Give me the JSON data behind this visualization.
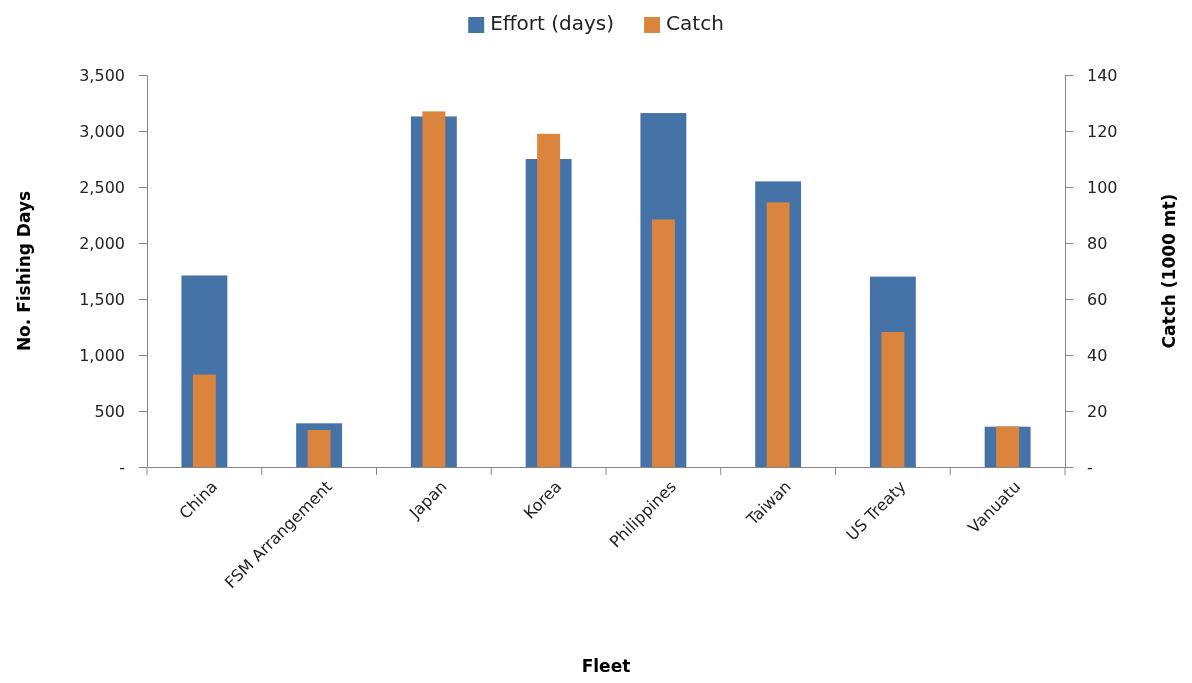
{
  "chart_data": {
    "type": "bar",
    "xlabel": "Fleet",
    "ylabel": "No. Fishing Days",
    "y2label": "Catch (1000 mt)",
    "categories": [
      "China",
      "FSM Arrangement",
      "Japan",
      "Korea",
      "Philippines",
      "Taiwan",
      "US Treaty",
      "Vanuatu"
    ],
    "series": [
      {
        "name": "Effort (days)",
        "color": "#4572a7",
        "values": [
          1710,
          390,
          3130,
          2750,
          3160,
          2550,
          1700,
          360
        ]
      },
      {
        "name": "Catch",
        "color": "#db843d",
        "axis": "y2",
        "values": [
          33,
          13.2,
          127,
          119,
          88.4,
          94.5,
          48.2,
          14.5
        ]
      }
    ],
    "ylim": [
      0,
      3500
    ],
    "yticks": [
      {
        "value": 0,
        "label": "-"
      },
      {
        "value": 500,
        "label": "500"
      },
      {
        "value": 1000,
        "label": "1,000"
      },
      {
        "value": 1500,
        "label": "1,500"
      },
      {
        "value": 2000,
        "label": "2,000"
      },
      {
        "value": 2500,
        "label": "2,500"
      },
      {
        "value": 3000,
        "label": "3,000"
      },
      {
        "value": 3500,
        "label": "3,500"
      }
    ],
    "y2lim": [
      0,
      140
    ],
    "y2ticks": [
      {
        "value": 0,
        "label": "-"
      },
      20,
      40,
      60,
      80,
      100,
      120,
      140
    ],
    "legend": "top",
    "grid": false
  }
}
